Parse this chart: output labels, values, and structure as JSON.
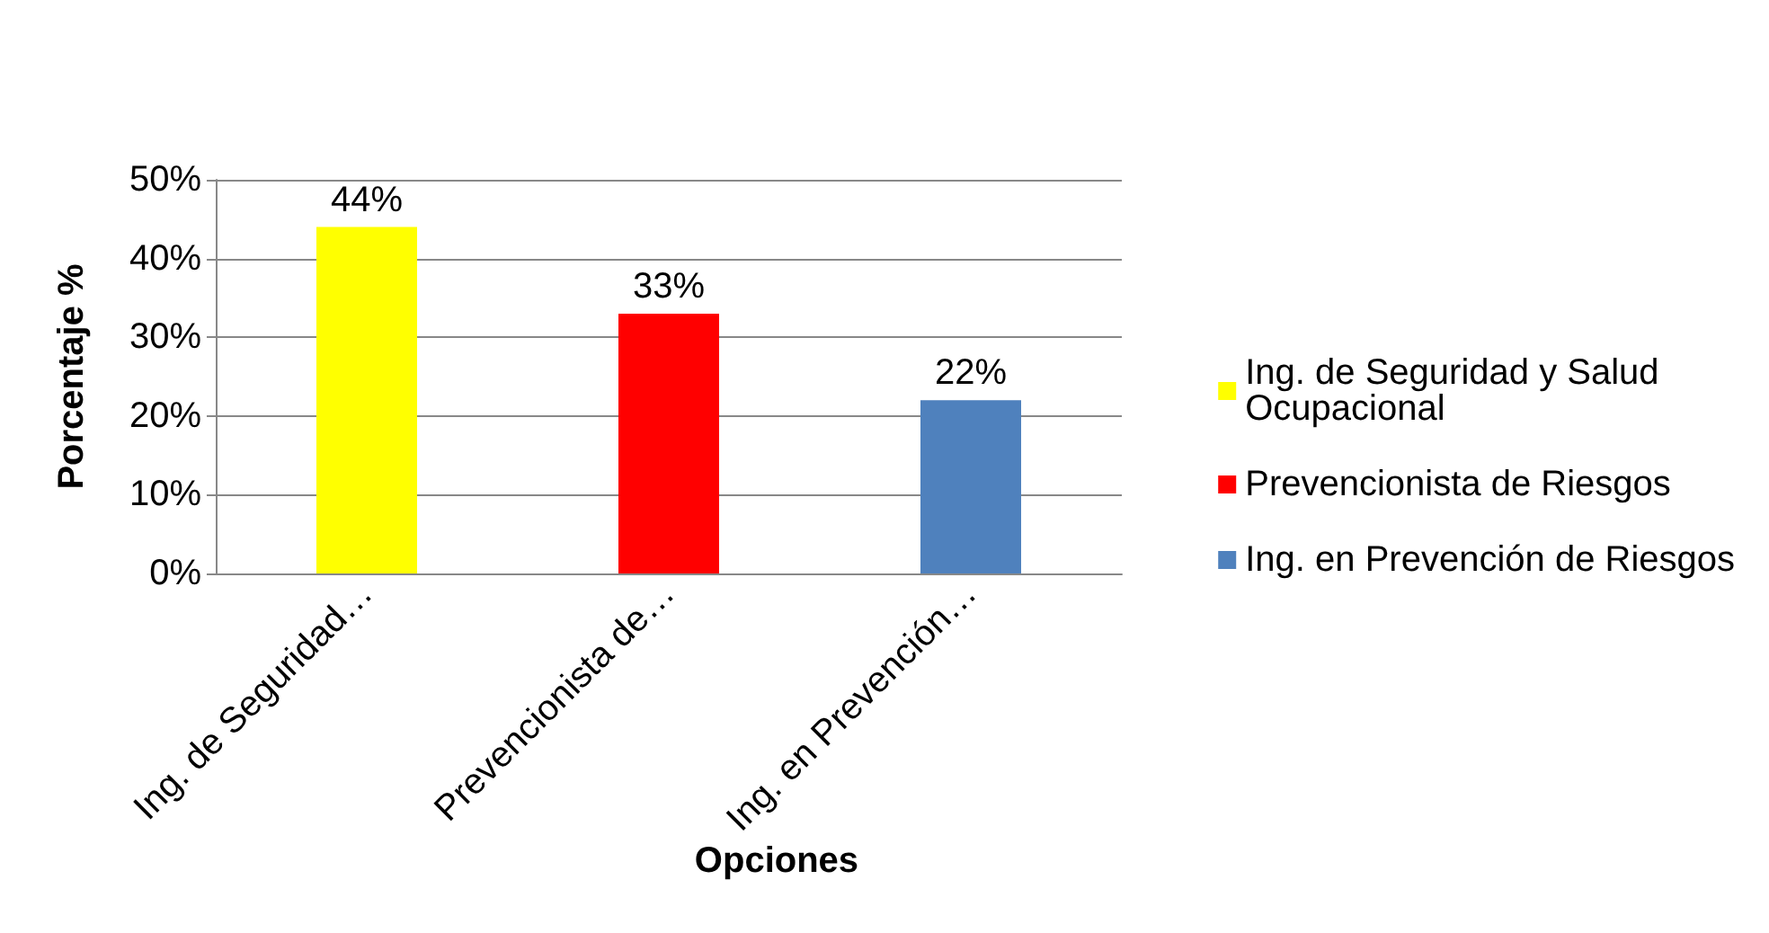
{
  "chart_data": {
    "type": "bar",
    "categories": [
      "Ing. de Seguridad…",
      "Prevencionista de…",
      "Ing. en Prevención…"
    ],
    "series": [
      {
        "name": "Ing. de Seguridad y Salud Ocupacional",
        "color": "#ffff00",
        "values": [
          44,
          null,
          null
        ],
        "value_labels": [
          "44%",
          null,
          null
        ]
      },
      {
        "name": "Prevencionista de Riesgos",
        "color": "#ff0000",
        "values": [
          null,
          33,
          null
        ],
        "value_labels": [
          null,
          "33%",
          null
        ]
      },
      {
        "name": "Ing. en Prevención de Riesgos",
        "color": "#4f81bd",
        "values": [
          null,
          null,
          22
        ],
        "value_labels": [
          null,
          null,
          "22%"
        ]
      }
    ],
    "xlabel": "Opciones",
    "ylabel": "Porcentaje %",
    "ylim": [
      0,
      50
    ],
    "yticks": [
      {
        "value": 0,
        "label": "0%"
      },
      {
        "value": 10,
        "label": "10%"
      },
      {
        "value": 20,
        "label": "20%"
      },
      {
        "value": 30,
        "label": "30%"
      },
      {
        "value": 40,
        "label": "40%"
      },
      {
        "value": 50,
        "label": "50%"
      }
    ],
    "grid": "y",
    "legend": "right"
  }
}
